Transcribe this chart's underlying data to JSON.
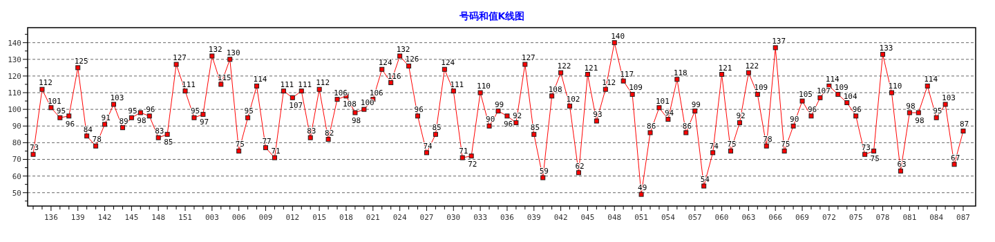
{
  "chart_data": {
    "type": "line",
    "title": "号码和值K线图",
    "categories": [
      null,
      null,
      "136",
      null,
      null,
      "139",
      null,
      null,
      "142",
      null,
      null,
      "145",
      null,
      null,
      "148",
      null,
      null,
      "151",
      null,
      null,
      "003",
      null,
      null,
      "006",
      null,
      null,
      "009",
      null,
      null,
      "012",
      null,
      null,
      "015",
      null,
      null,
      "018",
      null,
      null,
      "021",
      null,
      null,
      "024",
      null,
      null,
      "027",
      null,
      null,
      "030",
      null,
      null,
      "033",
      null,
      null,
      "036",
      null,
      null,
      "039",
      null,
      null,
      "042",
      null,
      null,
      "045",
      null,
      null,
      "048",
      null,
      null,
      "051",
      null,
      null,
      "054",
      null,
      null,
      "057",
      null,
      null,
      "060",
      null,
      null,
      "063",
      null,
      null,
      "066",
      null,
      null,
      "069",
      null,
      null,
      "072",
      null,
      null,
      "075",
      null,
      null,
      "078",
      null,
      null,
      "081",
      null,
      null,
      "084",
      null,
      null,
      "087"
    ],
    "series": [
      {
        "color": "#ff0000",
        "values": [
          73,
          112,
          101,
          95,
          96,
          125,
          84,
          78,
          91,
          103,
          89,
          95,
          98,
          96,
          83,
          85,
          127,
          111,
          95,
          97,
          132,
          115,
          130,
          75,
          95,
          114,
          77,
          71,
          111,
          107,
          111,
          83,
          112,
          82,
          106,
          108,
          98,
          100,
          106,
          124,
          116,
          132,
          126,
          96,
          74,
          85,
          124,
          111,
          71,
          72,
          110,
          90,
          99,
          96,
          92,
          127,
          85,
          59,
          108,
          122,
          102,
          62,
          121,
          93,
          112,
          140,
          117,
          109,
          49,
          86,
          101,
          94,
          118,
          86,
          99,
          54,
          74,
          121,
          75,
          92,
          122,
          109,
          78,
          137,
          75,
          90,
          105,
          96,
          107,
          114,
          109,
          104,
          96,
          73,
          75,
          133,
          110,
          63,
          98,
          98,
          114,
          95,
          103,
          67,
          87
        ]
      }
    ],
    "ylim": [
      42,
      149
    ],
    "yticks": [
      {
        "value": 45,
        "label": null
      },
      50,
      {
        "value": 55,
        "label": null
      },
      60,
      {
        "value": 65,
        "label": null
      },
      70,
      {
        "value": 75,
        "label": null
      },
      80,
      {
        "value": 85,
        "label": null
      },
      90,
      {
        "value": 95,
        "label": null
      },
      100,
      {
        "value": 105,
        "label": null
      },
      110,
      {
        "value": 115,
        "label": null
      },
      120,
      {
        "value": 125,
        "label": null
      },
      130,
      {
        "value": 135,
        "label": null
      },
      140,
      {
        "value": 145,
        "label": null
      }
    ],
    "grid": "y",
    "marker": "square",
    "line_style": "solid",
    "data_labels": true
  }
}
